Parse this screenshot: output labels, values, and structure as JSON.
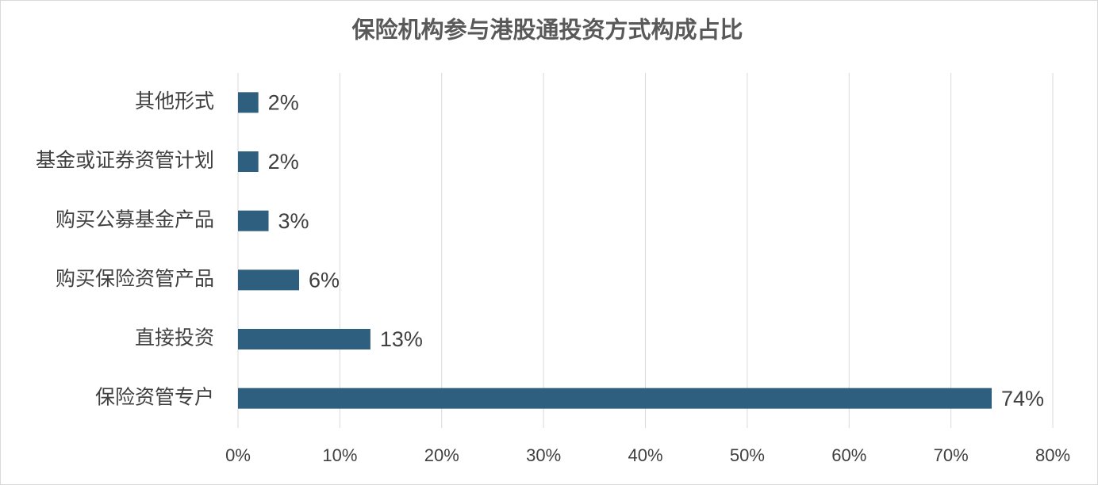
{
  "chart_data": {
    "type": "hbar",
    "title": "保险机构参与港股通投资方式构成占比",
    "categories": [
      "其他形式",
      "基金或证券资管计划",
      "购买公募基金产品",
      "购买保险资管产品",
      "直接投资",
      "保险资管专户"
    ],
    "values": [
      2,
      2,
      3,
      6,
      13,
      74
    ],
    "value_labels": [
      "2%",
      "2%",
      "3%",
      "6%",
      "13%",
      "74%"
    ],
    "color": "#2e5f7e",
    "xlim": [
      0,
      80
    ],
    "xticks": [
      {
        "value": 0,
        "label": "0%"
      },
      {
        "value": 10,
        "label": "10%"
      },
      {
        "value": 20,
        "label": "20%"
      },
      {
        "value": 30,
        "label": "30%"
      },
      {
        "value": 40,
        "label": "40%"
      },
      {
        "value": 50,
        "label": "50%"
      },
      {
        "value": 60,
        "label": "60%"
      },
      {
        "value": 70,
        "label": "70%"
      },
      {
        "value": 80,
        "label": "80%"
      }
    ],
    "grid": true
  }
}
